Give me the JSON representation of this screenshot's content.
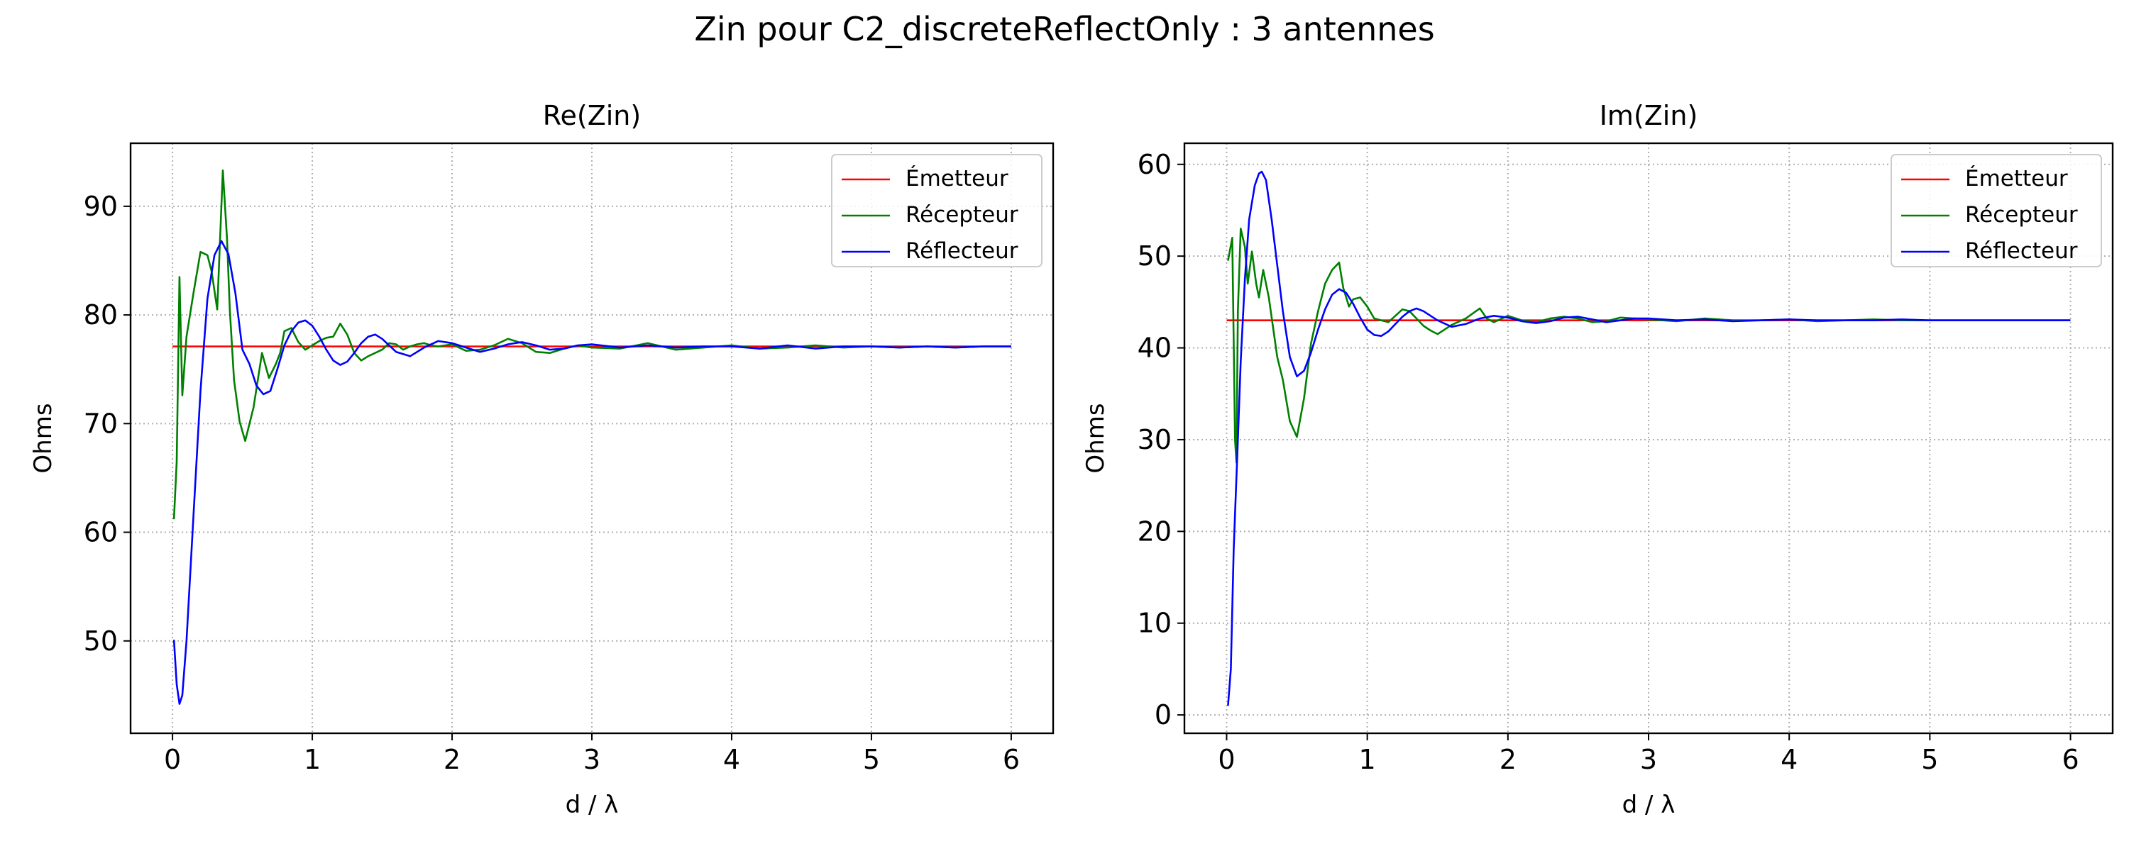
{
  "figure": {
    "title": "Zin pour C2_discreteReflectOnly : 3 antennes"
  },
  "chart_data": [
    {
      "type": "line",
      "title": "Re(Zin)",
      "xlabel": "d / λ",
      "ylabel": "Ohms",
      "xlim": [
        -0.3,
        6.3
      ],
      "ylim": [
        41.5,
        95.8
      ],
      "xticks": [
        0,
        1,
        2,
        3,
        4,
        5,
        6
      ],
      "yticks": [
        50,
        60,
        70,
        80,
        90
      ],
      "grid": true,
      "legend_position": "upper right",
      "series": [
        {
          "name": "Émetteur",
          "color": "#ff0000",
          "x": [
            0,
            6
          ],
          "y": [
            77.1,
            77.1
          ]
        },
        {
          "name": "Récepteur",
          "color": "#008000",
          "x": [
            0.01,
            0.03,
            0.05,
            0.07,
            0.1,
            0.15,
            0.2,
            0.25,
            0.28,
            0.32,
            0.36,
            0.39,
            0.41,
            0.44,
            0.48,
            0.52,
            0.58,
            0.64,
            0.69,
            0.74,
            0.77,
            0.8,
            0.85,
            0.9,
            0.95,
            1.0,
            1.05,
            1.1,
            1.15,
            1.2,
            1.25,
            1.3,
            1.35,
            1.4,
            1.45,
            1.5,
            1.55,
            1.6,
            1.65,
            1.7,
            1.75,
            1.8,
            1.85,
            1.9,
            2.0,
            2.1,
            2.2,
            2.3,
            2.4,
            2.5,
            2.6,
            2.7,
            2.8,
            2.9,
            3.0,
            3.2,
            3.4,
            3.6,
            3.8,
            4.0,
            4.2,
            4.4,
            4.6,
            4.8,
            5.0,
            5.2,
            5.4,
            5.6,
            5.8,
            6.0
          ],
          "y": [
            61.2,
            66.5,
            83.5,
            72.6,
            78.0,
            82.0,
            85.8,
            85.5,
            84.0,
            80.5,
            93.3,
            87.0,
            80.5,
            74.0,
            70.2,
            68.4,
            71.5,
            76.5,
            74.2,
            75.5,
            76.5,
            78.5,
            78.8,
            77.5,
            76.8,
            77.2,
            77.6,
            77.9,
            78.0,
            79.2,
            78.2,
            76.5,
            75.8,
            76.2,
            76.5,
            76.8,
            77.4,
            77.3,
            76.8,
            77.1,
            77.3,
            77.4,
            77.2,
            77.1,
            77.3,
            76.7,
            76.8,
            77.2,
            77.8,
            77.4,
            76.6,
            76.5,
            76.9,
            77.2,
            77.0,
            76.9,
            77.4,
            76.8,
            77.0,
            77.2,
            76.9,
            77.0,
            77.2,
            77.0,
            77.1,
            77.0,
            77.1,
            77.0,
            77.1,
            77.1
          ]
        },
        {
          "name": "Réflecteur",
          "color": "#0000ff",
          "x": [
            0.01,
            0.03,
            0.05,
            0.07,
            0.1,
            0.15,
            0.2,
            0.25,
            0.3,
            0.35,
            0.4,
            0.45,
            0.5,
            0.55,
            0.6,
            0.65,
            0.7,
            0.75,
            0.8,
            0.85,
            0.9,
            0.95,
            1.0,
            1.05,
            1.1,
            1.15,
            1.2,
            1.25,
            1.3,
            1.35,
            1.4,
            1.45,
            1.5,
            1.6,
            1.7,
            1.8,
            1.9,
            2.0,
            2.1,
            2.2,
            2.3,
            2.4,
            2.5,
            2.6,
            2.7,
            2.8,
            2.9,
            3.0,
            3.2,
            3.4,
            3.6,
            3.8,
            4.0,
            4.2,
            4.4,
            4.6,
            4.8,
            5.0,
            5.2,
            5.4,
            5.6,
            5.8,
            6.0
          ],
          "y": [
            50.1,
            46.0,
            44.2,
            45.0,
            50.0,
            61.5,
            73.0,
            81.5,
            85.5,
            86.8,
            85.6,
            82.0,
            76.8,
            75.5,
            73.5,
            72.7,
            73.0,
            75.0,
            77.2,
            78.5,
            79.3,
            79.5,
            79.0,
            78.0,
            76.8,
            75.8,
            75.4,
            75.7,
            76.5,
            77.4,
            78.0,
            78.2,
            77.8,
            76.6,
            76.2,
            77.0,
            77.6,
            77.4,
            77.0,
            76.6,
            76.9,
            77.3,
            77.5,
            77.2,
            76.8,
            76.9,
            77.2,
            77.3,
            77.0,
            77.2,
            77.0,
            77.1,
            77.1,
            76.9,
            77.2,
            76.9,
            77.1,
            77.1,
            77.0,
            77.1,
            77.0,
            77.1,
            77.1
          ]
        }
      ]
    },
    {
      "type": "line",
      "title": "Im(Zin)",
      "xlabel": "d / λ",
      "ylabel": "Ohms",
      "xlim": [
        -0.3,
        6.3
      ],
      "ylim": [
        -2.0,
        62.3
      ],
      "xticks": [
        0,
        1,
        2,
        3,
        4,
        5,
        6
      ],
      "yticks": [
        0,
        10,
        20,
        30,
        40,
        50,
        60
      ],
      "grid": true,
      "legend_position": "upper right",
      "series": [
        {
          "name": "Émetteur",
          "color": "#ff0000",
          "x": [
            0,
            6
          ],
          "y": [
            43.0,
            43.0
          ]
        },
        {
          "name": "Récepteur",
          "color": "#008000",
          "x": [
            0.01,
            0.04,
            0.06,
            0.07,
            0.08,
            0.1,
            0.13,
            0.15,
            0.18,
            0.21,
            0.23,
            0.26,
            0.3,
            0.36,
            0.4,
            0.45,
            0.5,
            0.55,
            0.6,
            0.65,
            0.7,
            0.75,
            0.8,
            0.83,
            0.87,
            0.9,
            0.95,
            1.0,
            1.05,
            1.1,
            1.15,
            1.2,
            1.25,
            1.3,
            1.35,
            1.4,
            1.45,
            1.5,
            1.55,
            1.6,
            1.7,
            1.8,
            1.85,
            1.9,
            2.0,
            2.1,
            2.2,
            2.3,
            2.4,
            2.5,
            2.6,
            2.7,
            2.8,
            2.9,
            3.0,
            3.2,
            3.4,
            3.6,
            3.8,
            4.0,
            4.2,
            4.4,
            4.6,
            4.8,
            5.0,
            5.2,
            5.4,
            5.6,
            5.8,
            6.0
          ],
          "y": [
            49.5,
            52.0,
            30.0,
            27.5,
            44.0,
            53.0,
            51.0,
            47.0,
            50.5,
            47.0,
            45.5,
            48.5,
            45.5,
            39.0,
            36.5,
            32.0,
            30.3,
            34.5,
            40.5,
            44.0,
            47.0,
            48.5,
            49.3,
            46.5,
            44.5,
            45.3,
            45.5,
            44.5,
            43.2,
            43.0,
            42.8,
            43.5,
            44.2,
            44.0,
            43.2,
            42.4,
            41.9,
            41.5,
            42.0,
            42.5,
            43.2,
            44.3,
            43.2,
            42.8,
            43.5,
            43.0,
            42.8,
            43.2,
            43.4,
            43.2,
            42.8,
            42.9,
            43.3,
            43.2,
            43.1,
            42.9,
            43.2,
            43.0,
            43.0,
            43.1,
            42.9,
            43.0,
            43.1,
            43.0,
            43.0,
            43.0,
            43.0,
            43.0,
            43.0,
            43.0
          ]
        },
        {
          "name": "Réflecteur",
          "color": "#0000ff",
          "x": [
            0.01,
            0.03,
            0.05,
            0.08,
            0.1,
            0.13,
            0.16,
            0.2,
            0.23,
            0.25,
            0.28,
            0.32,
            0.36,
            0.4,
            0.45,
            0.5,
            0.55,
            0.6,
            0.65,
            0.7,
            0.75,
            0.8,
            0.85,
            0.9,
            0.95,
            1.0,
            1.05,
            1.1,
            1.15,
            1.2,
            1.25,
            1.3,
            1.35,
            1.4,
            1.45,
            1.5,
            1.6,
            1.7,
            1.8,
            1.9,
            2.0,
            2.1,
            2.2,
            2.3,
            2.4,
            2.5,
            2.6,
            2.7,
            2.8,
            2.9,
            3.0,
            3.2,
            3.4,
            3.6,
            3.8,
            4.0,
            4.2,
            4.4,
            4.6,
            4.8,
            5.0,
            5.2,
            5.4,
            5.6,
            5.8,
            6.0
          ],
          "y": [
            1.0,
            5.0,
            18.0,
            30.0,
            38.5,
            47.5,
            54.0,
            57.7,
            59.0,
            59.2,
            58.3,
            54.0,
            49.0,
            44.0,
            39.0,
            36.9,
            37.5,
            39.5,
            42.0,
            44.2,
            45.8,
            46.4,
            46.0,
            44.8,
            43.3,
            42.0,
            41.4,
            41.3,
            41.8,
            42.6,
            43.4,
            44.0,
            44.3,
            44.0,
            43.5,
            43.0,
            42.3,
            42.6,
            43.2,
            43.5,
            43.3,
            42.9,
            42.7,
            42.9,
            43.3,
            43.4,
            43.1,
            42.8,
            43.0,
            43.2,
            43.2,
            43.0,
            43.1,
            42.9,
            43.0,
            43.1,
            43.0,
            43.0,
            43.0,
            43.1,
            43.0,
            43.0,
            43.0,
            43.0,
            43.0,
            43.0
          ]
        }
      ]
    }
  ]
}
